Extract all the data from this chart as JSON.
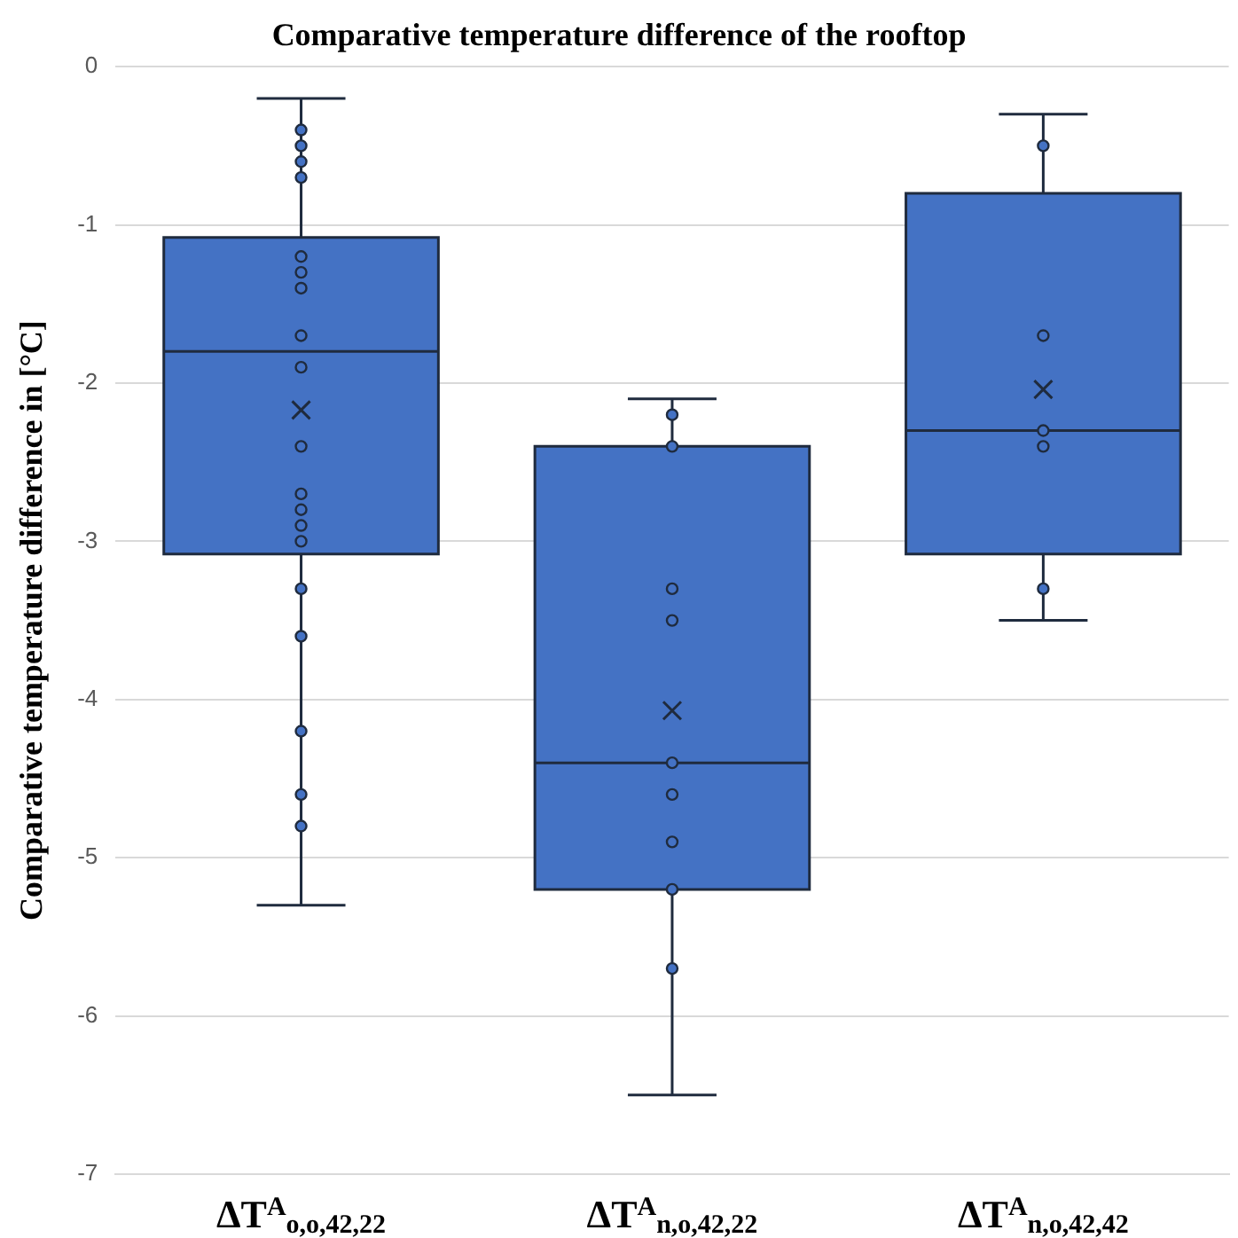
{
  "chart_data": {
    "type": "box",
    "title": "Comparative temperature difference of the rooftop",
    "ylabel": "Comparative temperature difference in [°C]",
    "categories": [
      "ΔT$^{A}$$_{o,o,42,22}$",
      "ΔT$^{A}$$_{n,o,42,22}$",
      "ΔT$^{A}$$_{n,o,42,42}$"
    ],
    "color": "#4472c4",
    "boxes": [
      {
        "low": -5.3,
        "q1": -3.08,
        "median": -1.8,
        "q3": -1.08,
        "high": -0.2,
        "mean": -2.17
      },
      {
        "low": -6.5,
        "q1": -5.2,
        "median": -4.4,
        "q3": -2.4,
        "high": -2.1,
        "mean": -4.07
      },
      {
        "low": -3.5,
        "q1": -3.08,
        "median": -2.3,
        "q3": -0.8,
        "high": -0.3,
        "mean": -2.04
      }
    ],
    "series": [
      {
        "type": "scatter",
        "color": "#4472c4",
        "x": [
          "ΔT$^{A}$$_{o,o,42,22}$",
          "ΔT$^{A}$$_{o,o,42,22}$",
          "ΔT$^{A}$$_{o,o,42,22}$",
          "ΔT$^{A}$$_{o,o,42,22}$",
          "ΔT$^{A}$$_{o,o,42,22}$",
          "ΔT$^{A}$$_{o,o,42,22}$",
          "ΔT$^{A}$$_{o,o,42,22}$",
          "ΔT$^{A}$$_{o,o,42,22}$",
          "ΔT$^{A}$$_{o,o,42,22}$",
          "ΔT$^{A}$$_{o,o,42,22}$",
          "ΔT$^{A}$$_{o,o,42,22}$",
          "ΔT$^{A}$$_{o,o,42,22}$",
          "ΔT$^{A}$$_{o,o,42,22}$",
          "ΔT$^{A}$$_{o,o,42,22}$",
          "ΔT$^{A}$$_{o,o,42,22}$",
          "ΔT$^{A}$$_{o,o,42,22}$",
          "ΔT$^{A}$$_{o,o,42,22}$",
          "ΔT$^{A}$$_{o,o,42,22}$",
          "ΔT$^{A}$$_{o,o,42,22}$",
          "ΔT$^{A}$$_{n,o,42,22}$",
          "ΔT$^{A}$$_{n,o,42,22}$",
          "ΔT$^{A}$$_{n,o,42,22}$",
          "ΔT$^{A}$$_{n,o,42,22}$",
          "ΔT$^{A}$$_{n,o,42,22}$",
          "ΔT$^{A}$$_{n,o,42,22}$",
          "ΔT$^{A}$$_{n,o,42,22}$",
          "ΔT$^{A}$$_{n,o,42,22}$",
          "ΔT$^{A}$$_{n,o,42,22}$",
          "ΔT$^{A}$$_{n,o,42,42}$",
          "ΔT$^{A}$$_{n,o,42,42}$",
          "ΔT$^{A}$$_{n,o,42,42}$",
          "ΔT$^{A}$$_{n,o,42,42}$",
          "ΔT$^{A}$$_{n,o,42,42}$"
        ],
        "values": [
          -0.4,
          -0.5,
          -0.6,
          -0.7,
          -1.2,
          -1.3,
          -1.4,
          -1.7,
          -1.9,
          -2.4,
          -2.7,
          -2.8,
          -2.9,
          -3.0,
          -3.3,
          -3.6,
          -4.2,
          -4.6,
          -4.8,
          -2.2,
          -2.4,
          -3.3,
          -3.5,
          -4.4,
          -4.6,
          -4.9,
          -5.2,
          -5.7,
          -0.5,
          -1.7,
          -2.3,
          -2.4,
          -3.3
        ]
      }
    ],
    "ylim": [
      -7,
      0
    ],
    "yticks": [
      -7,
      -6,
      -5,
      -4,
      -3,
      -2,
      -1,
      0
    ],
    "grid": "y",
    "legend": false,
    "marker": "circle"
  }
}
